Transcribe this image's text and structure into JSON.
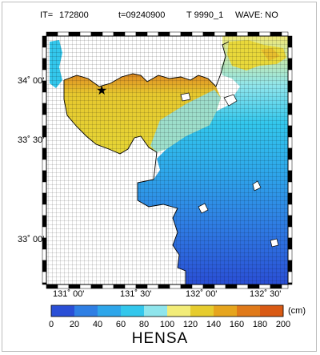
{
  "header": {
    "it_label": "IT=",
    "it_value": "172800",
    "time": "t=09240900",
    "run_id": "T 9990_1",
    "wave": "WAVE: NO"
  },
  "axes": {
    "lat_labels": [
      "34˚ 00'",
      "33˚ 30'",
      "33˚ 00'"
    ],
    "lon_labels": [
      "131˚ 00'",
      "131˚ 30'",
      "132˚ 00'",
      "132˚ 30'"
    ]
  },
  "colorbar": {
    "unit": "(cm)",
    "ticks": [
      "0",
      "20",
      "40",
      "60",
      "80",
      "100",
      "120",
      "140",
      "160",
      "180",
      "200"
    ],
    "colors": [
      "#2a4fd6",
      "#2f7fe4",
      "#2ea6ea",
      "#33c7ec",
      "#8fe5ec",
      "#f2ec78",
      "#e6cc2e",
      "#e6a51e",
      "#e07a1a",
      "#d95a14"
    ],
    "title": "HENSA"
  },
  "marker": {
    "symbol": "★"
  }
}
